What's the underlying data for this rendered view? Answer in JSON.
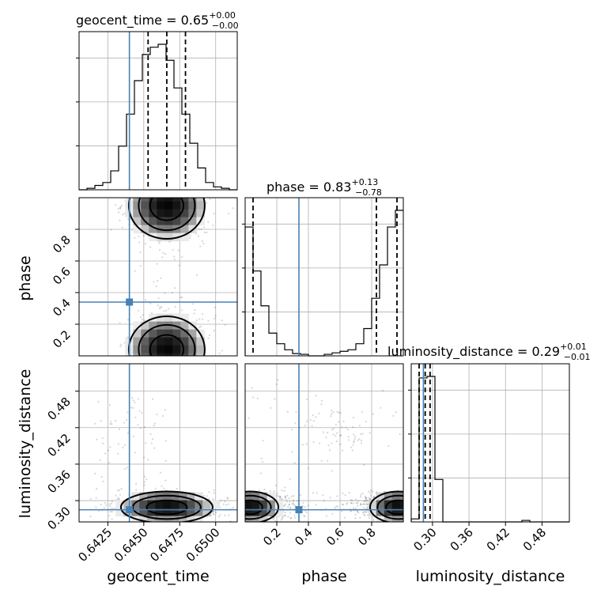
{
  "chart_data": {
    "type": "corner",
    "parameters": [
      {
        "name": "geocent_time",
        "axis_label": "geocent_time",
        "title": "geocent_time = 0.65",
        "title_plus": "+0.00",
        "title_minus": "−0.00",
        "range": [
          0.6405,
          0.6515
        ],
        "ticks": [
          0.6425,
          0.645,
          0.6475,
          0.65
        ],
        "tick_labels": [
          "0.6425",
          "0.6450",
          "0.6475",
          "0.6500"
        ],
        "truth": 0.644,
        "quantiles": [
          0.6453,
          0.6466,
          0.6479
        ],
        "hist_edges_start": 0.6405,
        "hist_bin_width": 0.00055,
        "hist_heights": [
          0,
          0.01,
          0.03,
          0.05,
          0.13,
          0.3,
          0.52,
          0.75,
          0.93,
          0.98,
          1.0,
          0.89,
          0.7,
          0.52,
          0.32,
          0.15,
          0.05,
          0.02,
          0.01,
          0
        ]
      },
      {
        "name": "phase",
        "axis_label": "phase",
        "title": "phase = 0.83",
        "title_plus": "+0.13",
        "title_minus": "−0.78",
        "range": [
          0.0,
          1.0
        ],
        "ticks": [
          0.2,
          0.4,
          0.6,
          0.8
        ],
        "tick_labels": [
          "0.2",
          "0.4",
          "0.6",
          "0.8"
        ],
        "truth": 0.34,
        "quantiles": [
          0.05,
          0.83,
          0.96
        ],
        "hist_edges_start": 0.0,
        "hist_bin_width": 0.05,
        "hist_heights": [
          0.85,
          0.56,
          0.33,
          0.15,
          0.08,
          0.04,
          0.015,
          0.01,
          0.0,
          0.0,
          0.01,
          0.02,
          0.03,
          0.04,
          0.08,
          0.18,
          0.38,
          0.6,
          0.85,
          0.96
        ]
      },
      {
        "name": "luminosity_distance",
        "axis_label": "luminosity_distance",
        "title": "luminosity_distance = 0.29",
        "title_plus": "+0.01",
        "title_minus": "−0.01",
        "range": [
          0.265,
          0.525
        ],
        "ticks": [
          0.3,
          0.36,
          0.42,
          0.48
        ],
        "tick_labels": [
          "0.30",
          "0.36",
          "0.42",
          "0.48"
        ],
        "truth": 0.285,
        "quantiles": [
          0.278,
          0.288,
          0.296
        ],
        "hist_edges_start": 0.265,
        "hist_bin_width": 0.013,
        "hist_heights": [
          0.02,
          0.95,
          0.96,
          0.28,
          0.0,
          0.0,
          0.0,
          0.0,
          0.0,
          0.0,
          0.0,
          0.0,
          0.0,
          0.0,
          0.01,
          0.0,
          0.0,
          0.0,
          0.0,
          0.0
        ]
      }
    ],
    "truth_color": "#4682b4",
    "grid": true
  }
}
